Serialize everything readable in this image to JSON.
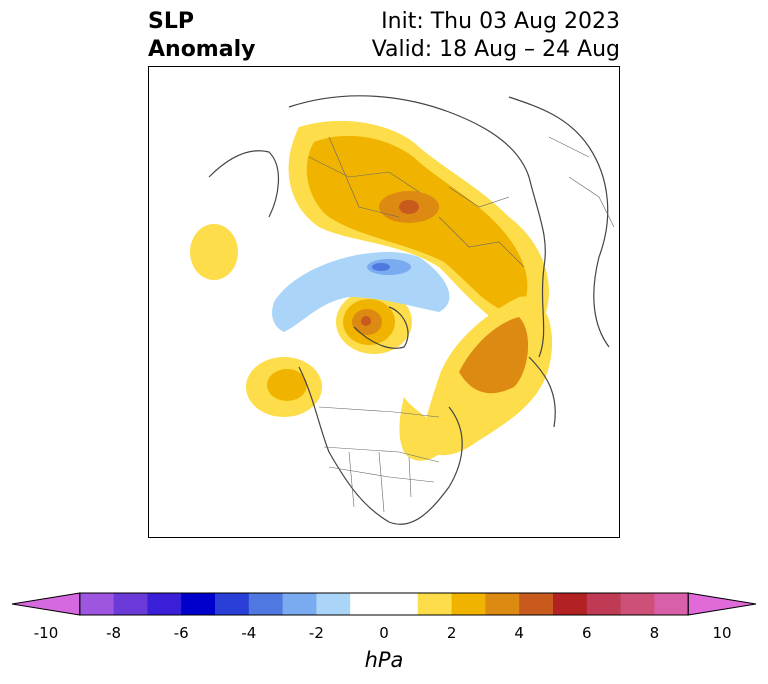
{
  "title": {
    "left_line1": "SLP",
    "left_line2": "Anomaly",
    "right_line1": "Init: Thu 03 Aug 2023",
    "right_line2": "Valid: 18 Aug – 24 Aug"
  },
  "colorbar": {
    "units": "hPa",
    "tick_labels": [
      "-10",
      "-8",
      "-6",
      "-4",
      "-2",
      "0",
      "2",
      "4",
      "6",
      "8",
      "10"
    ],
    "colors": [
      "#d56ae0",
      "#9e55e0",
      "#6b3ad8",
      "#3a1fd8",
      "#0000cc",
      "#2a3ed8",
      "#4f78e0",
      "#7aaaf0",
      "#aad4f8",
      "#ffffff",
      "#ffffff",
      "#fddd4a",
      "#f0b400",
      "#dd8a12",
      "#c85a1e",
      "#b22222",
      "#be3a55",
      "#cc5078",
      "#d860a8",
      "#e06ad8"
    ],
    "extend": "both"
  },
  "map": {
    "projection": "north-polar stereographic",
    "fields": "sea-level pressure anomaly (hPa)",
    "icons": [
      "coastline-lines",
      "country-borders",
      "state-borders"
    ]
  }
}
